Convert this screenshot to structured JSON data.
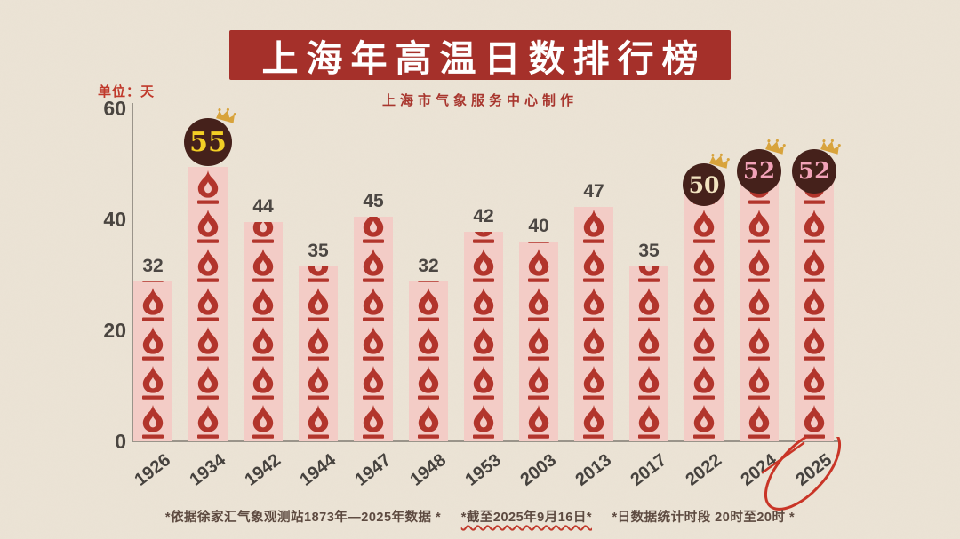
{
  "header": {
    "title": "上海年高温日数排行榜",
    "subtitle": "上海市气象服务中心制作"
  },
  "unit_label": "单位：天",
  "chart_data": {
    "type": "bar",
    "title": "上海年高温日数排行榜",
    "categories": [
      "1926",
      "1934",
      "1942",
      "1944",
      "1947",
      "1948",
      "1953",
      "2003",
      "2013",
      "2017",
      "2022",
      "2024",
      "2025"
    ],
    "values": [
      32,
      55,
      44,
      35,
      45,
      32,
      42,
      40,
      47,
      35,
      50,
      52,
      52
    ],
    "ylabel": "单位：天",
    "ylim": [
      0,
      60
    ],
    "yticks": [
      0,
      20,
      40,
      60
    ],
    "grid": false,
    "legend": "none",
    "bar_icon": "flame-icon",
    "badges": [
      {
        "category": "1934",
        "value": 55,
        "text_color": "#f3cf25",
        "crown": true
      },
      {
        "category": "2022",
        "value": 50,
        "text_color": "#f2e3c0",
        "crown": true
      },
      {
        "category": "2024",
        "value": 52,
        "text_color": "#f2a2b8",
        "crown": true
      },
      {
        "category": "2025",
        "value": 52,
        "text_color": "#f2a2b8",
        "crown": true
      }
    ],
    "highlighted_category": "2025",
    "highlight_style": "red-pen-circle"
  },
  "footer": {
    "note1": "*依据徐家汇气象观测站1873年—2025年数据 *",
    "note2": "*截至2025年9月16日*",
    "note3": "*日数据统计时段 20时至20时 *"
  },
  "colors": {
    "background": "#ebe3d5",
    "banner_bg": "#a5302a",
    "banner_text": "#ffffff",
    "subtitle_text": "#a8362e",
    "unit_text": "#c0392b",
    "axis": "#9a948a",
    "tick_text": "#4a4540",
    "value_text": "#4c4743",
    "bar_bg": "#f3ccc6",
    "flame": "#b2352c",
    "badge_bg": "#45211b",
    "crown": "#d8a33c",
    "footer_text": "#5d4a40",
    "wavy_underline": "#c0392b",
    "pen_circle": "#c93527"
  }
}
